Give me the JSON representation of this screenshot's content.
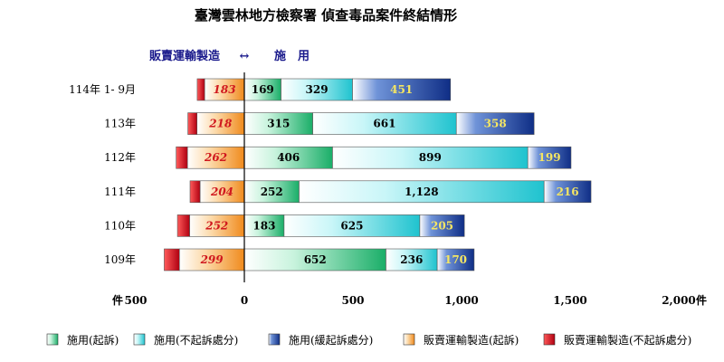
{
  "chart_data": {
    "type": "bar",
    "orientation": "horizontal",
    "stacked": true,
    "title": "臺灣雲林地方檢察署 偵查毒品案件終結情形",
    "direction_labels": {
      "left": "販賣運輸製造",
      "arrow": "↔",
      "right": "施　用"
    },
    "categories": [
      "114年 1- 9月",
      "113年",
      "112年",
      "111年",
      "110年",
      "109年"
    ],
    "series": [
      {
        "name": "施用(起訴)",
        "side": "right",
        "values": [
          169,
          315,
          406,
          252,
          183,
          652
        ],
        "color": "#2bbf7a"
      },
      {
        "name": "施用(不起訴處分)",
        "side": "right",
        "values": [
          329,
          661,
          899,
          1128,
          625,
          236
        ],
        "color": "#35cfd8"
      },
      {
        "name": "施用(緩起訴處分)",
        "side": "right",
        "values": [
          451,
          358,
          199,
          216,
          205,
          170
        ],
        "color": "#1c3f9a"
      },
      {
        "name": "販賣運輸製造(起訴)",
        "side": "left",
        "values": [
          183,
          218,
          262,
          204,
          252,
          299
        ],
        "color": "#f39a2c"
      },
      {
        "name": "販賣運輸製造(不起訴處分)",
        "side": "left",
        "values": [
          34,
          42,
          52,
          46,
          56,
          70
        ],
        "color": "#c8101a"
      }
    ],
    "xlim": [
      -500,
      2000
    ],
    "xticks": [
      {
        "value": -500,
        "label": "500"
      },
      {
        "value": 0,
        "label": "0"
      },
      {
        "value": 500,
        "label": "500"
      },
      {
        "value": 1000,
        "label": "1,000"
      },
      {
        "value": 1500,
        "label": "1,500"
      },
      {
        "value": 2000,
        "label": "2,000"
      }
    ],
    "unit_left": "件",
    "unit_right": "件",
    "data_labels": [
      [
        "183",
        "169",
        "329",
        "451"
      ],
      [
        "218",
        "315",
        "661",
        "358"
      ],
      [
        "262",
        "406",
        "899",
        "199"
      ],
      [
        "204",
        "252",
        "1,128",
        "216"
      ],
      [
        "252",
        "183",
        "625",
        "205"
      ],
      [
        "299",
        "652",
        "236",
        "170"
      ]
    ],
    "legend_position": "bottom",
    "grid": false
  }
}
